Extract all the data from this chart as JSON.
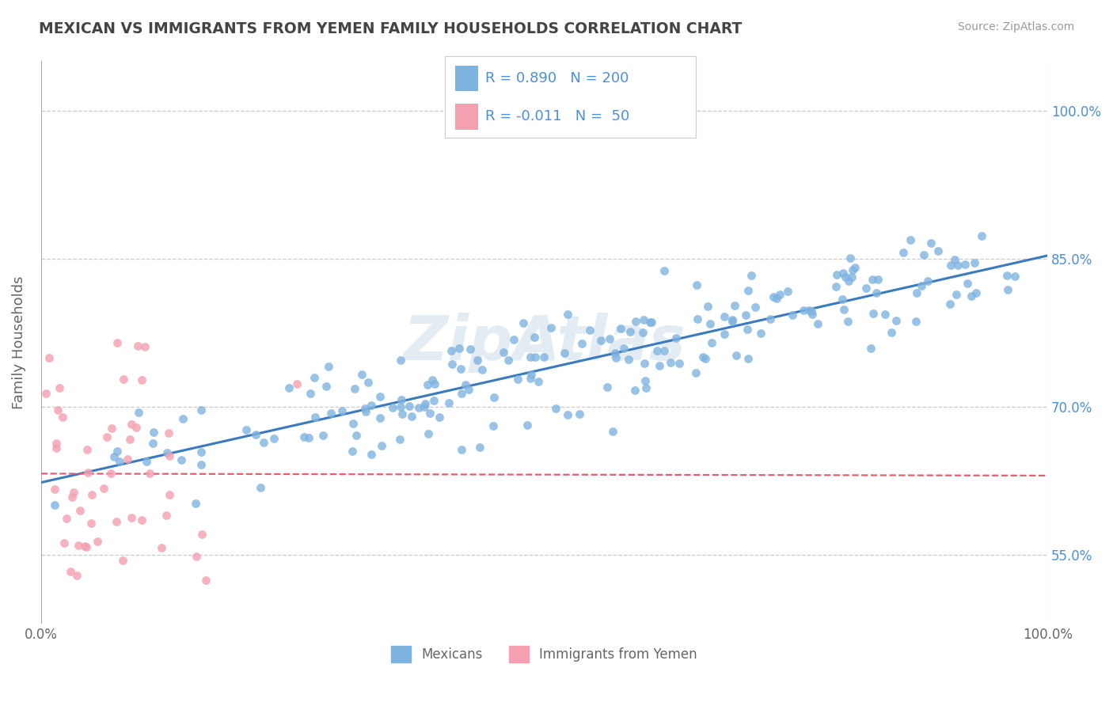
{
  "title": "MEXICAN VS IMMIGRANTS FROM YEMEN FAMILY HOUSEHOLDS CORRELATION CHART",
  "source_text": "Source: ZipAtlas.com",
  "xlabel": "",
  "ylabel": "Family Households",
  "legend_bottom": [
    "Mexicans",
    "Immigrants from Yemen"
  ],
  "r_mexican": 0.89,
  "n_mexican": 200,
  "r_yemen": -0.011,
  "n_yemen": 50,
  "x_min": 0.0,
  "x_max": 1.0,
  "y_min": 0.48,
  "y_max": 1.05,
  "y_ticks": [
    0.55,
    0.7,
    0.85,
    1.0
  ],
  "y_tick_labels": [
    "55.0%",
    "70.0%",
    "85.0%",
    "100.0%"
  ],
  "x_tick_labels": [
    "0.0%",
    "100.0%"
  ],
  "watermark": "ZipAtlas",
  "blue_color": "#7eb3e0",
  "pink_color": "#f4a0b0",
  "blue_line_color": "#3a7abf",
  "pink_line_color": "#e06070",
  "legend_r_color": "#4a90d9",
  "title_color": "#444444",
  "background_color": "#ffffff",
  "plot_bg_color": "#ffffff",
  "grid_color": "#cccccc",
  "mex_line_y0": 0.623,
  "mex_line_y1": 0.853,
  "yem_line_y0": 0.632,
  "yem_line_y1": 0.63
}
